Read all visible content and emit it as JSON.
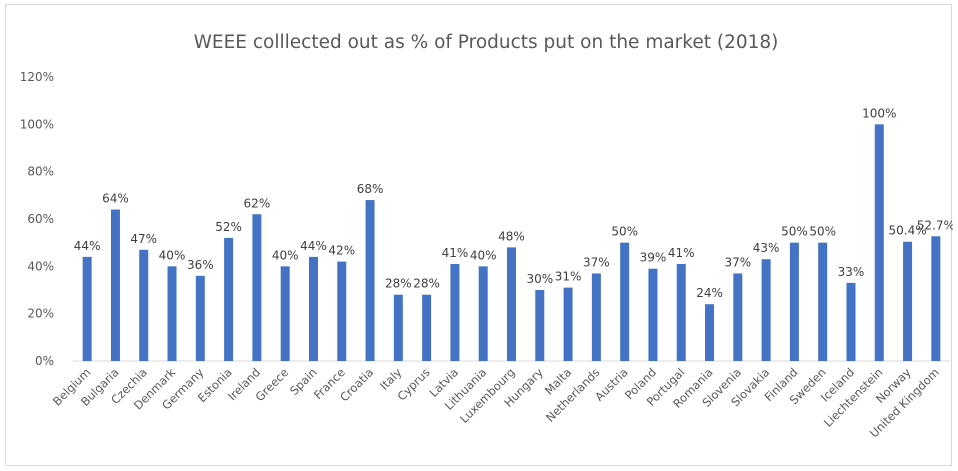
{
  "chart_data": {
    "type": "bar",
    "title": "WEEE colllected out as % of Products put on the market (2018)",
    "xlabel": "",
    "ylabel": "",
    "ylim": [
      0,
      120
    ],
    "yticks": [
      "0%",
      "20%",
      "40%",
      "60%",
      "80%",
      "100%",
      "120%"
    ],
    "grid": false,
    "bar_color": "#4472c4",
    "categories": [
      "Belgium",
      "Bulgaria",
      "Czechia",
      "Denmark",
      "Germany",
      "Estonia",
      "Ireland",
      "Greece",
      "Spain",
      "France",
      "Croatia",
      "Italy",
      "Cyprus",
      "Latvia",
      "Lithuania",
      "Luxembourg",
      "Hungary",
      "Malta",
      "Netherlands",
      "Austria",
      "Poland",
      "Portugal",
      "Romania",
      "Slovenia",
      "Slovakia",
      "Finland",
      "Sweden",
      "Iceland",
      "Liechtenstein",
      "Norway",
      "United Kingdom"
    ],
    "values": [
      44,
      64,
      47,
      40,
      36,
      52,
      62,
      40,
      44,
      42,
      68,
      28,
      28,
      41,
      40,
      48,
      30,
      31,
      37,
      50,
      39,
      41,
      24,
      37,
      43,
      50,
      50,
      33,
      100,
      50.4,
      52.7
    ],
    "data_labels": [
      "44%",
      "64%",
      "47%",
      "40%",
      "36%",
      "52%",
      "62%",
      "40%",
      "44%",
      "42%",
      "68%",
      "28%",
      "28%",
      "41%",
      "40%",
      "48%",
      "30%",
      "31%",
      "37%",
      "50%",
      "39%",
      "41%",
      "24%",
      "37%",
      "43%",
      "50%",
      "50%",
      "33%",
      "100%",
      "50.4%",
      "52.7%"
    ]
  }
}
